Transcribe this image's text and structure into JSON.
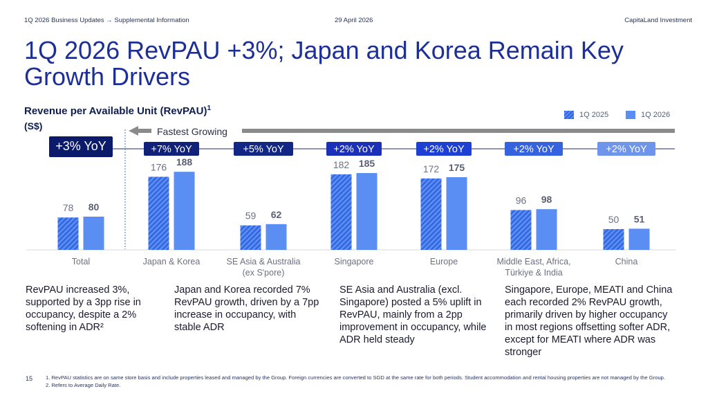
{
  "header": {
    "breadcrumb": "1Q 2026 Business Updates → Supplemental Information",
    "date": "29 April 2026",
    "company": "CapitaLand Investment"
  },
  "title": "1Q 2026 RevPAU +3%; Japan and Korea Remain Key Growth Drivers",
  "fastest_label": "Fastest Growing",
  "captions": [
    "RevPAU increased 3%, supported by a 3pp rise in occupancy, despite a 2% softening in ADR²",
    "Japan and Korea recorded 7% RevPAU growth, driven by a 7pp increase in occupancy, with stable ADR",
    "SE Asia and Australia (excl. Singapore) posted a 5% uplift in RevPAU, mainly from a 2pp improvement in occupancy, while ADR held steady",
    "Singapore, Europe, MEATI and China each recorded 2% RevPAU growth, primarily driven by higher occupancy in most regions offsetting softer ADR, except for MEATI where ADR was stronger"
  ],
  "page_number": "15",
  "footnotes": [
    "1.   RevPAU statistics are on same store basis and include properties leased and managed by the Group. Foreign currencies are converted to SGD at the same rate for both periods. Student accommodation and rental housing properties are not managed by the Group.",
    "2.   Refers to Average Daily Rate."
  ],
  "colors": {
    "navy": "#0b1a6b",
    "blue_mid": "#1b3ec9",
    "blue_light": "#5b8ef2",
    "hatch_dark": "#2f62de"
  },
  "chart_data": {
    "type": "bar",
    "title": "Revenue per Available Unit (RevPAU)",
    "title_sup": "1",
    "unit": "(S$)",
    "categories": [
      "Total",
      "Japan & Korea",
      "SE Asia & Australia (ex S'pore)",
      "Singapore",
      "Europe",
      "Middle East, Africa, Türkiye & India",
      "China"
    ],
    "category_lines": [
      [
        "Total"
      ],
      [
        "Japan & Korea"
      ],
      [
        "SE Asia & Australia",
        "(ex S'pore)"
      ],
      [
        "Singapore"
      ],
      [
        "Europe"
      ],
      [
        "Middle East, Africa,",
        "Türkiye & India"
      ],
      [
        "China"
      ]
    ],
    "series": [
      {
        "name": "1Q 2025",
        "values": [
          78,
          176,
          59,
          182,
          172,
          96,
          50
        ]
      },
      {
        "name": "1Q 2026",
        "values": [
          80,
          188,
          62,
          185,
          175,
          98,
          51
        ]
      }
    ],
    "yoy_labels": [
      "+3% YoY",
      "+7% YoY",
      "+5% YoY",
      "+2% YoY",
      "+2% YoY",
      "+2% YoY",
      "+2% YoY"
    ],
    "ylim": [
      0,
      200
    ],
    "legend_position": "top-right",
    "grid": false
  }
}
